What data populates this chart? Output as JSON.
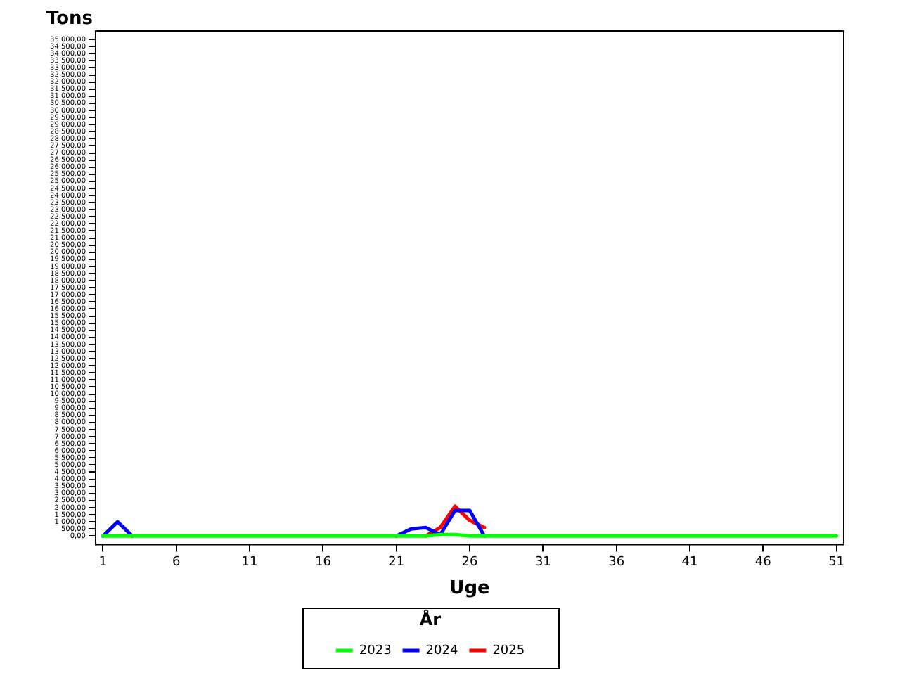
{
  "chart_data": {
    "type": "line",
    "xlabel": "Uge",
    "ylabel": "Tons",
    "legend_title": "År",
    "legend": "bottom",
    "x": [
      1,
      2,
      3,
      4,
      5,
      6,
      7,
      8,
      9,
      10,
      11,
      12,
      13,
      14,
      15,
      16,
      17,
      18,
      19,
      20,
      21,
      22,
      23,
      24,
      25,
      26,
      27,
      28,
      29,
      30,
      31,
      32,
      33,
      34,
      35,
      36,
      37,
      38,
      39,
      40,
      41,
      42,
      43,
      44,
      45,
      46,
      47,
      48,
      49,
      50,
      51
    ],
    "xlim": [
      0.5,
      51.5
    ],
    "xticks": [
      1,
      6,
      11,
      16,
      21,
      26,
      31,
      36,
      41,
      46,
      51
    ],
    "ylim": [
      -600,
      35600
    ],
    "yticks": [
      {
        "value": 0,
        "label": "0,00"
      },
      {
        "value": 500,
        "label": "500,00"
      },
      {
        "value": 1000,
        "label": "1 000,00"
      },
      {
        "value": 1500,
        "label": "1 500,00"
      },
      {
        "value": 2000,
        "label": "2 000,00"
      },
      {
        "value": 2500,
        "label": "2 500,00"
      },
      {
        "value": 3000,
        "label": "3 000,00"
      },
      {
        "value": 3500,
        "label": "3 500,00"
      },
      {
        "value": 4000,
        "label": "4 000,00"
      },
      {
        "value": 4500,
        "label": "4 500,00"
      },
      {
        "value": 5000,
        "label": "5 000,00"
      },
      {
        "value": 5500,
        "label": "5 500,00"
      },
      {
        "value": 6000,
        "label": "6 000,00"
      },
      {
        "value": 6500,
        "label": "6 500,00"
      },
      {
        "value": 7000,
        "label": "7 000,00"
      },
      {
        "value": 7500,
        "label": "7 500,00"
      },
      {
        "value": 8000,
        "label": "8 000,00"
      },
      {
        "value": 8500,
        "label": "8 500,00"
      },
      {
        "value": 9000,
        "label": "9 000,00"
      },
      {
        "value": 9500,
        "label": "9 500,00"
      },
      {
        "value": 10000,
        "label": "10 000,00"
      },
      {
        "value": 10500,
        "label": "10 500,00"
      },
      {
        "value": 11000,
        "label": "11 000,00"
      },
      {
        "value": 11500,
        "label": "11 500,00"
      },
      {
        "value": 12000,
        "label": "12 000,00"
      },
      {
        "value": 12500,
        "label": "12 500,00"
      },
      {
        "value": 13000,
        "label": "13 000,00"
      },
      {
        "value": 13500,
        "label": "13 500,00"
      },
      {
        "value": 14000,
        "label": "14 000,00"
      },
      {
        "value": 14500,
        "label": "14 500,00"
      },
      {
        "value": 15000,
        "label": "15 000,00"
      },
      {
        "value": 15500,
        "label": "15 500,00"
      },
      {
        "value": 16000,
        "label": "16 000,00"
      },
      {
        "value": 16500,
        "label": "16 500,00"
      },
      {
        "value": 17000,
        "label": "17 000,00"
      },
      {
        "value": 17500,
        "label": "17 500,00"
      },
      {
        "value": 18000,
        "label": "18 000,00"
      },
      {
        "value": 18500,
        "label": "18 500,00"
      },
      {
        "value": 19000,
        "label": "19 000,00"
      },
      {
        "value": 19500,
        "label": "19 500,00"
      },
      {
        "value": 20000,
        "label": "20 000,00"
      },
      {
        "value": 20500,
        "label": "20 500,00"
      },
      {
        "value": 21000,
        "label": "21 000,00"
      },
      {
        "value": 21500,
        "label": "21 500,00"
      },
      {
        "value": 22000,
        "label": "22 000,00"
      },
      {
        "value": 22500,
        "label": "22 500,00"
      },
      {
        "value": 23000,
        "label": "23 000,00"
      },
      {
        "value": 23500,
        "label": "23 500,00"
      },
      {
        "value": 24000,
        "label": "24 000,00"
      },
      {
        "value": 24500,
        "label": "24 500,00"
      },
      {
        "value": 25000,
        "label": "25 000,00"
      },
      {
        "value": 25500,
        "label": "25 500,00"
      },
      {
        "value": 26000,
        "label": "26 000,00"
      },
      {
        "value": 26500,
        "label": "26 500,00"
      },
      {
        "value": 27000,
        "label": "27 000,00"
      },
      {
        "value": 27500,
        "label": "27 500,00"
      },
      {
        "value": 28000,
        "label": "28 000,00"
      },
      {
        "value": 28500,
        "label": "28 500,00"
      },
      {
        "value": 29000,
        "label": "29 000,00"
      },
      {
        "value": 29500,
        "label": "29 500,00"
      },
      {
        "value": 30000,
        "label": "30 000,00"
      },
      {
        "value": 30500,
        "label": "30 500,00"
      },
      {
        "value": 31000,
        "label": "31 000,00"
      },
      {
        "value": 31500,
        "label": "31 500,00"
      },
      {
        "value": 32000,
        "label": "32 000,00"
      },
      {
        "value": 32500,
        "label": "32 500,00"
      },
      {
        "value": 33000,
        "label": "33 000,00"
      },
      {
        "value": 33500,
        "label": "33 500,00"
      },
      {
        "value": 34000,
        "label": "34 000,00"
      },
      {
        "value": 34500,
        "label": "34 500,00"
      },
      {
        "value": 35000,
        "label": "35 000,00"
      }
    ],
    "series": [
      {
        "name": "2023",
        "color": "#00ff00",
        "values": [
          0,
          0,
          0,
          0,
          0,
          0,
          0,
          0,
          0,
          0,
          0,
          0,
          0,
          0,
          0,
          0,
          0,
          0,
          0,
          0,
          0,
          0,
          0,
          100,
          100,
          0,
          0,
          0,
          0,
          0,
          0,
          0,
          0,
          0,
          0,
          0,
          0,
          0,
          0,
          0,
          0,
          0,
          0,
          0,
          0,
          0,
          0,
          0,
          0,
          0,
          0
        ]
      },
      {
        "name": "2024",
        "color": "#0000ff",
        "values": [
          0,
          1000,
          0,
          null,
          null,
          null,
          null,
          null,
          null,
          null,
          null,
          null,
          null,
          null,
          null,
          null,
          null,
          null,
          null,
          null,
          0,
          500,
          600,
          100,
          1800,
          1800,
          0,
          null,
          null,
          null,
          null,
          null,
          null,
          null,
          null,
          null,
          null,
          null,
          null,
          null,
          null,
          null,
          null,
          null,
          null,
          null,
          null,
          null,
          null,
          null,
          null
        ]
      },
      {
        "name": "2025",
        "color": "#ff0000",
        "values": [
          null,
          null,
          null,
          null,
          null,
          null,
          null,
          null,
          null,
          null,
          null,
          null,
          null,
          null,
          null,
          null,
          null,
          null,
          null,
          null,
          null,
          null,
          0,
          600,
          2100,
          1100,
          600,
          null,
          null,
          null,
          null,
          null,
          null,
          null,
          null,
          null,
          null,
          null,
          null,
          null,
          null,
          null,
          null,
          null,
          null,
          null,
          null,
          null,
          null,
          null,
          null
        ]
      }
    ]
  }
}
